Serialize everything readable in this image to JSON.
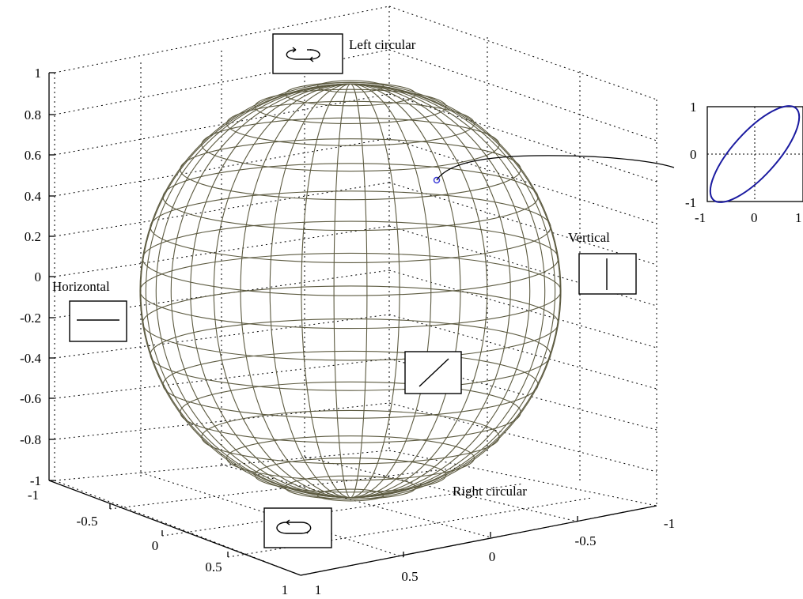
{
  "labels": {
    "left_circular": "Left circular",
    "right_circular": "Right circular",
    "horizontal": "Horizontal",
    "vertical": "Vertical"
  },
  "z_ticks": [
    "1",
    "0.8",
    "0.6",
    "0.4",
    "0.2",
    "0",
    "-0.2",
    "-0.4",
    "-0.6",
    "-0.8",
    "-1"
  ],
  "x_ticks": [
    "-1",
    "-0.5",
    "0",
    "0.5",
    "1"
  ],
  "y_ticks": [
    "1",
    "0.5",
    "0",
    "-0.5",
    "-1"
  ],
  "inset": {
    "y_ticks": [
      "1",
      "0",
      "-1"
    ],
    "x_ticks": [
      "-1",
      "0",
      "1"
    ]
  },
  "colors": {
    "sphere": "#5c5a40",
    "ellipse": "#1a1aa0",
    "marker": "#3a3ad8",
    "grid": "#000000"
  },
  "icons": {
    "left_circular": "circular-arrows-icon",
    "right_circular": "circular-arrows-icon",
    "horizontal": "horizontal-line-icon",
    "vertical": "vertical-line-icon",
    "diagonal": "diagonal-line-icon"
  }
}
